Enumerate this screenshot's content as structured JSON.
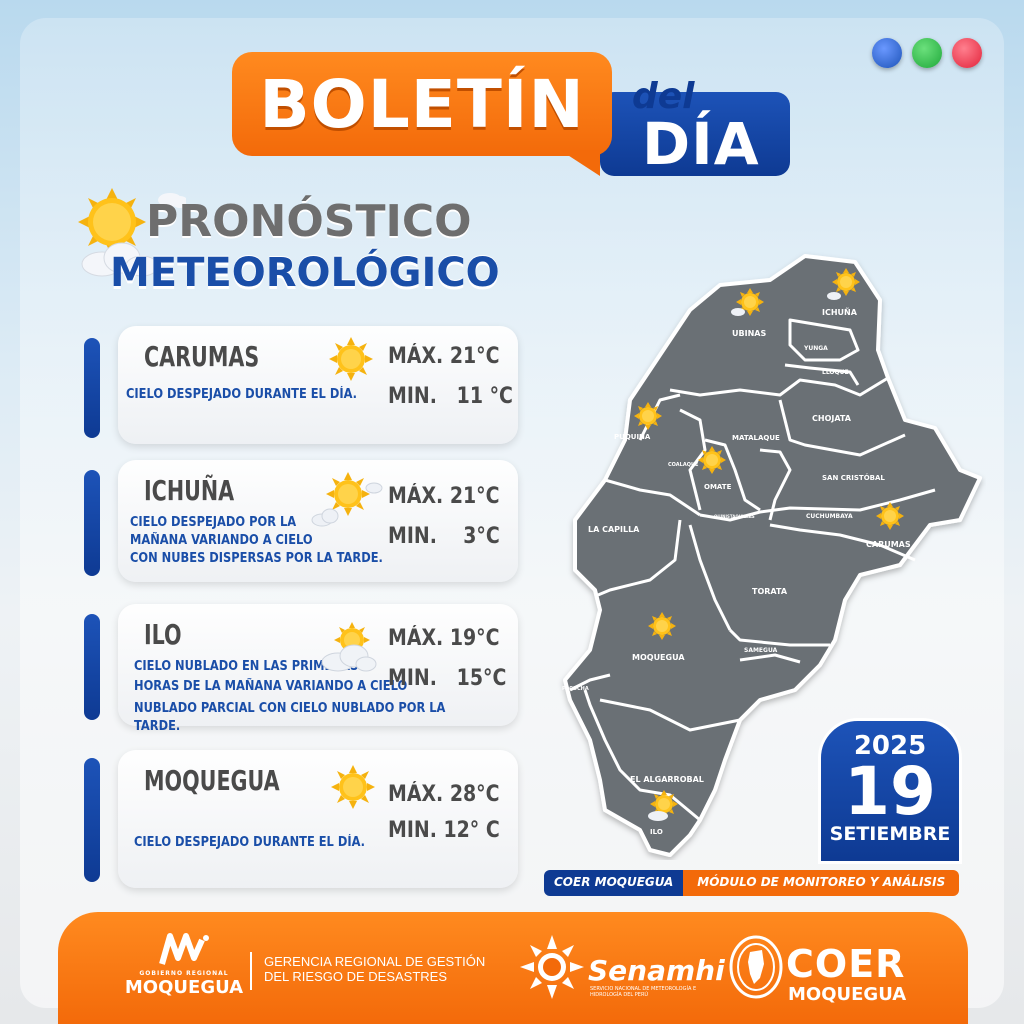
{
  "header": {
    "title_main": "BOLETÍN",
    "title_del": "del",
    "title_dia": "DÍA",
    "dot_colors": [
      "#1d53b8",
      "#1fa83a",
      "#e2233a"
    ]
  },
  "forecast_heading": {
    "line1": "PRONÓSTICO",
    "line2": "METEOROLÓGICO"
  },
  "cards": [
    {
      "name": "CARUMAS",
      "description": "CIELO DESPEJADO DURANTE EL DÍA.",
      "max": "MÁX. 21°C",
      "min": "MIN.   11 °C",
      "icon": "sun-icon"
    },
    {
      "name": "ICHUÑA",
      "description_lines": [
        "CIELO DESPEJADO POR LA",
        "MAÑANA VARIANDO A CIELO",
        "CON NUBES DISPERSAS POR LA TARDE."
      ],
      "max": "MÁX. 21°C",
      "min": "MIN.    3°C",
      "icon": "sun-cloud-icon"
    },
    {
      "name": "ILO",
      "description_lines": [
        "CIELO NUBLADO EN LAS PRIMERAS",
        "HORAS DE LA MAÑANA VARIANDO A CIELO",
        "NUBLADO PARCIAL CON CIELO NUBLADO POR LA TARDE."
      ],
      "max": "MÁX. 19°C",
      "min": "MIN.   15°C",
      "icon": "cloud-sun-icon"
    },
    {
      "name": "MOQUEGUA",
      "description": "CIELO DESPEJADO DURANTE EL DÍA.",
      "max": "MÁX. 28°C",
      "min": "MIN. 12° C",
      "icon": "sun-icon"
    }
  ],
  "map": {
    "labels": [
      "UBINAS",
      "ICHUÑA",
      "YUNGA",
      "LLOQUE",
      "CHOJATA",
      "MATALAQUE",
      "PUQUINA",
      "COALAQUE",
      "OMATE",
      "SAN CRISTÓBAL",
      "QUINISTAQUILLAS",
      "CUCHUMBAYA",
      "CARUMAS",
      "LA CAPILLA",
      "TORATA",
      "MOQUEGUA",
      "SAMEGUA",
      "PACOCHA",
      "EL ALGARROBAL",
      "ILO"
    ]
  },
  "date": {
    "year": "2025",
    "day": "19",
    "month": "SETIEMBRE"
  },
  "coer_strip": {
    "left": "COER MOQUEGUA",
    "right": "MÓDULO DE MONITOREO Y ANÁLISIS"
  },
  "footer": {
    "gob_small": "GOBIERNO REGIONAL",
    "gob_big": "MOQUEGUA",
    "gerencia_line1": "GERENCIA REGIONAL DE GESTIÓN",
    "gerencia_line2": "DEL RIESGO DE DESASTRES",
    "senamhi_name": "Senamhi",
    "senamhi_sub": "SERVICIO NACIONAL DE METEOROLOGÍA E HIDROLOGÍA DEL PERÚ",
    "coer_name": "COER",
    "coer_sub": "MOQUEGUA"
  }
}
